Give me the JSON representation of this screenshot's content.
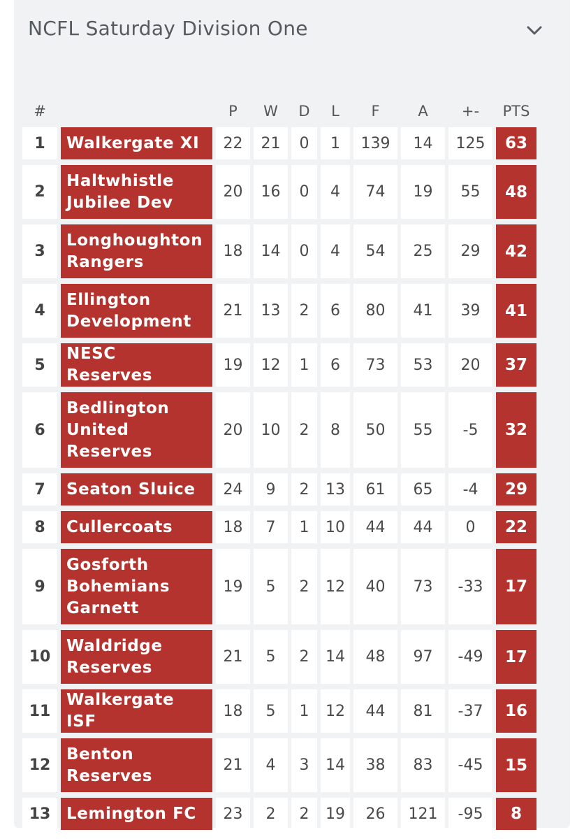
{
  "title": "NCFL Saturday Division One",
  "header_icon": "chevron-down-icon",
  "colors": {
    "team_cell": "#b5332e",
    "card_bg": "#f1f2f3"
  },
  "columns": {
    "pos": "#",
    "team": "",
    "p": "P",
    "w": "W",
    "d": "D",
    "l": "L",
    "f": "F",
    "a": "A",
    "gd": "+-",
    "pts": "PTS"
  },
  "rows": [
    {
      "pos": "1",
      "team": [
        "Walkergate XI"
      ],
      "p": "22",
      "w": "21",
      "d": "0",
      "l": "1",
      "f": "139",
      "a": "14",
      "gd": "125",
      "pts": "63"
    },
    {
      "pos": "2",
      "team": [
        "Haltwhistle",
        "Jubilee Dev"
      ],
      "p": "20",
      "w": "16",
      "d": "0",
      "l": "4",
      "f": "74",
      "a": "19",
      "gd": "55",
      "pts": "48"
    },
    {
      "pos": "3",
      "team": [
        "Longhoughton",
        "Rangers"
      ],
      "p": "18",
      "w": "14",
      "d": "0",
      "l": "4",
      "f": "54",
      "a": "25",
      "gd": "29",
      "pts": "42"
    },
    {
      "pos": "4",
      "team": [
        "Ellington",
        "Development"
      ],
      "p": "21",
      "w": "13",
      "d": "2",
      "l": "6",
      "f": "80",
      "a": "41",
      "gd": "39",
      "pts": "41"
    },
    {
      "pos": "5",
      "team": [
        "NESC Reserves"
      ],
      "p": "19",
      "w": "12",
      "d": "1",
      "l": "6",
      "f": "73",
      "a": "53",
      "gd": "20",
      "pts": "37"
    },
    {
      "pos": "6",
      "team": [
        "Bedlington",
        "United",
        "Reserves"
      ],
      "p": "20",
      "w": "10",
      "d": "2",
      "l": "8",
      "f": "50",
      "a": "55",
      "gd": "-5",
      "pts": "32"
    },
    {
      "pos": "7",
      "team": [
        "Seaton Sluice"
      ],
      "p": "24",
      "w": "9",
      "d": "2",
      "l": "13",
      "f": "61",
      "a": "65",
      "gd": "-4",
      "pts": "29"
    },
    {
      "pos": "8",
      "team": [
        "Cullercoats"
      ],
      "p": "18",
      "w": "7",
      "d": "1",
      "l": "10",
      "f": "44",
      "a": "44",
      "gd": "0",
      "pts": "22"
    },
    {
      "pos": "9",
      "team": [
        "Gosforth",
        "Bohemians",
        "Garnett"
      ],
      "p": "19",
      "w": "5",
      "d": "2",
      "l": "12",
      "f": "40",
      "a": "73",
      "gd": "-33",
      "pts": "17"
    },
    {
      "pos": "10",
      "team": [
        "Waldridge",
        "Reserves"
      ],
      "p": "21",
      "w": "5",
      "d": "2",
      "l": "14",
      "f": "48",
      "a": "97",
      "gd": "-49",
      "pts": "17"
    },
    {
      "pos": "11",
      "team": [
        "Walkergate ISF"
      ],
      "p": "18",
      "w": "5",
      "d": "1",
      "l": "12",
      "f": "44",
      "a": "81",
      "gd": "-37",
      "pts": "16"
    },
    {
      "pos": "12",
      "team": [
        "Benton",
        "Reserves"
      ],
      "p": "21",
      "w": "4",
      "d": "3",
      "l": "14",
      "f": "38",
      "a": "83",
      "gd": "-45",
      "pts": "15"
    },
    {
      "pos": "13",
      "team": [
        "Lemington FC"
      ],
      "p": "23",
      "w": "2",
      "d": "2",
      "l": "19",
      "f": "26",
      "a": "121",
      "gd": "-95",
      "pts": "8"
    }
  ]
}
